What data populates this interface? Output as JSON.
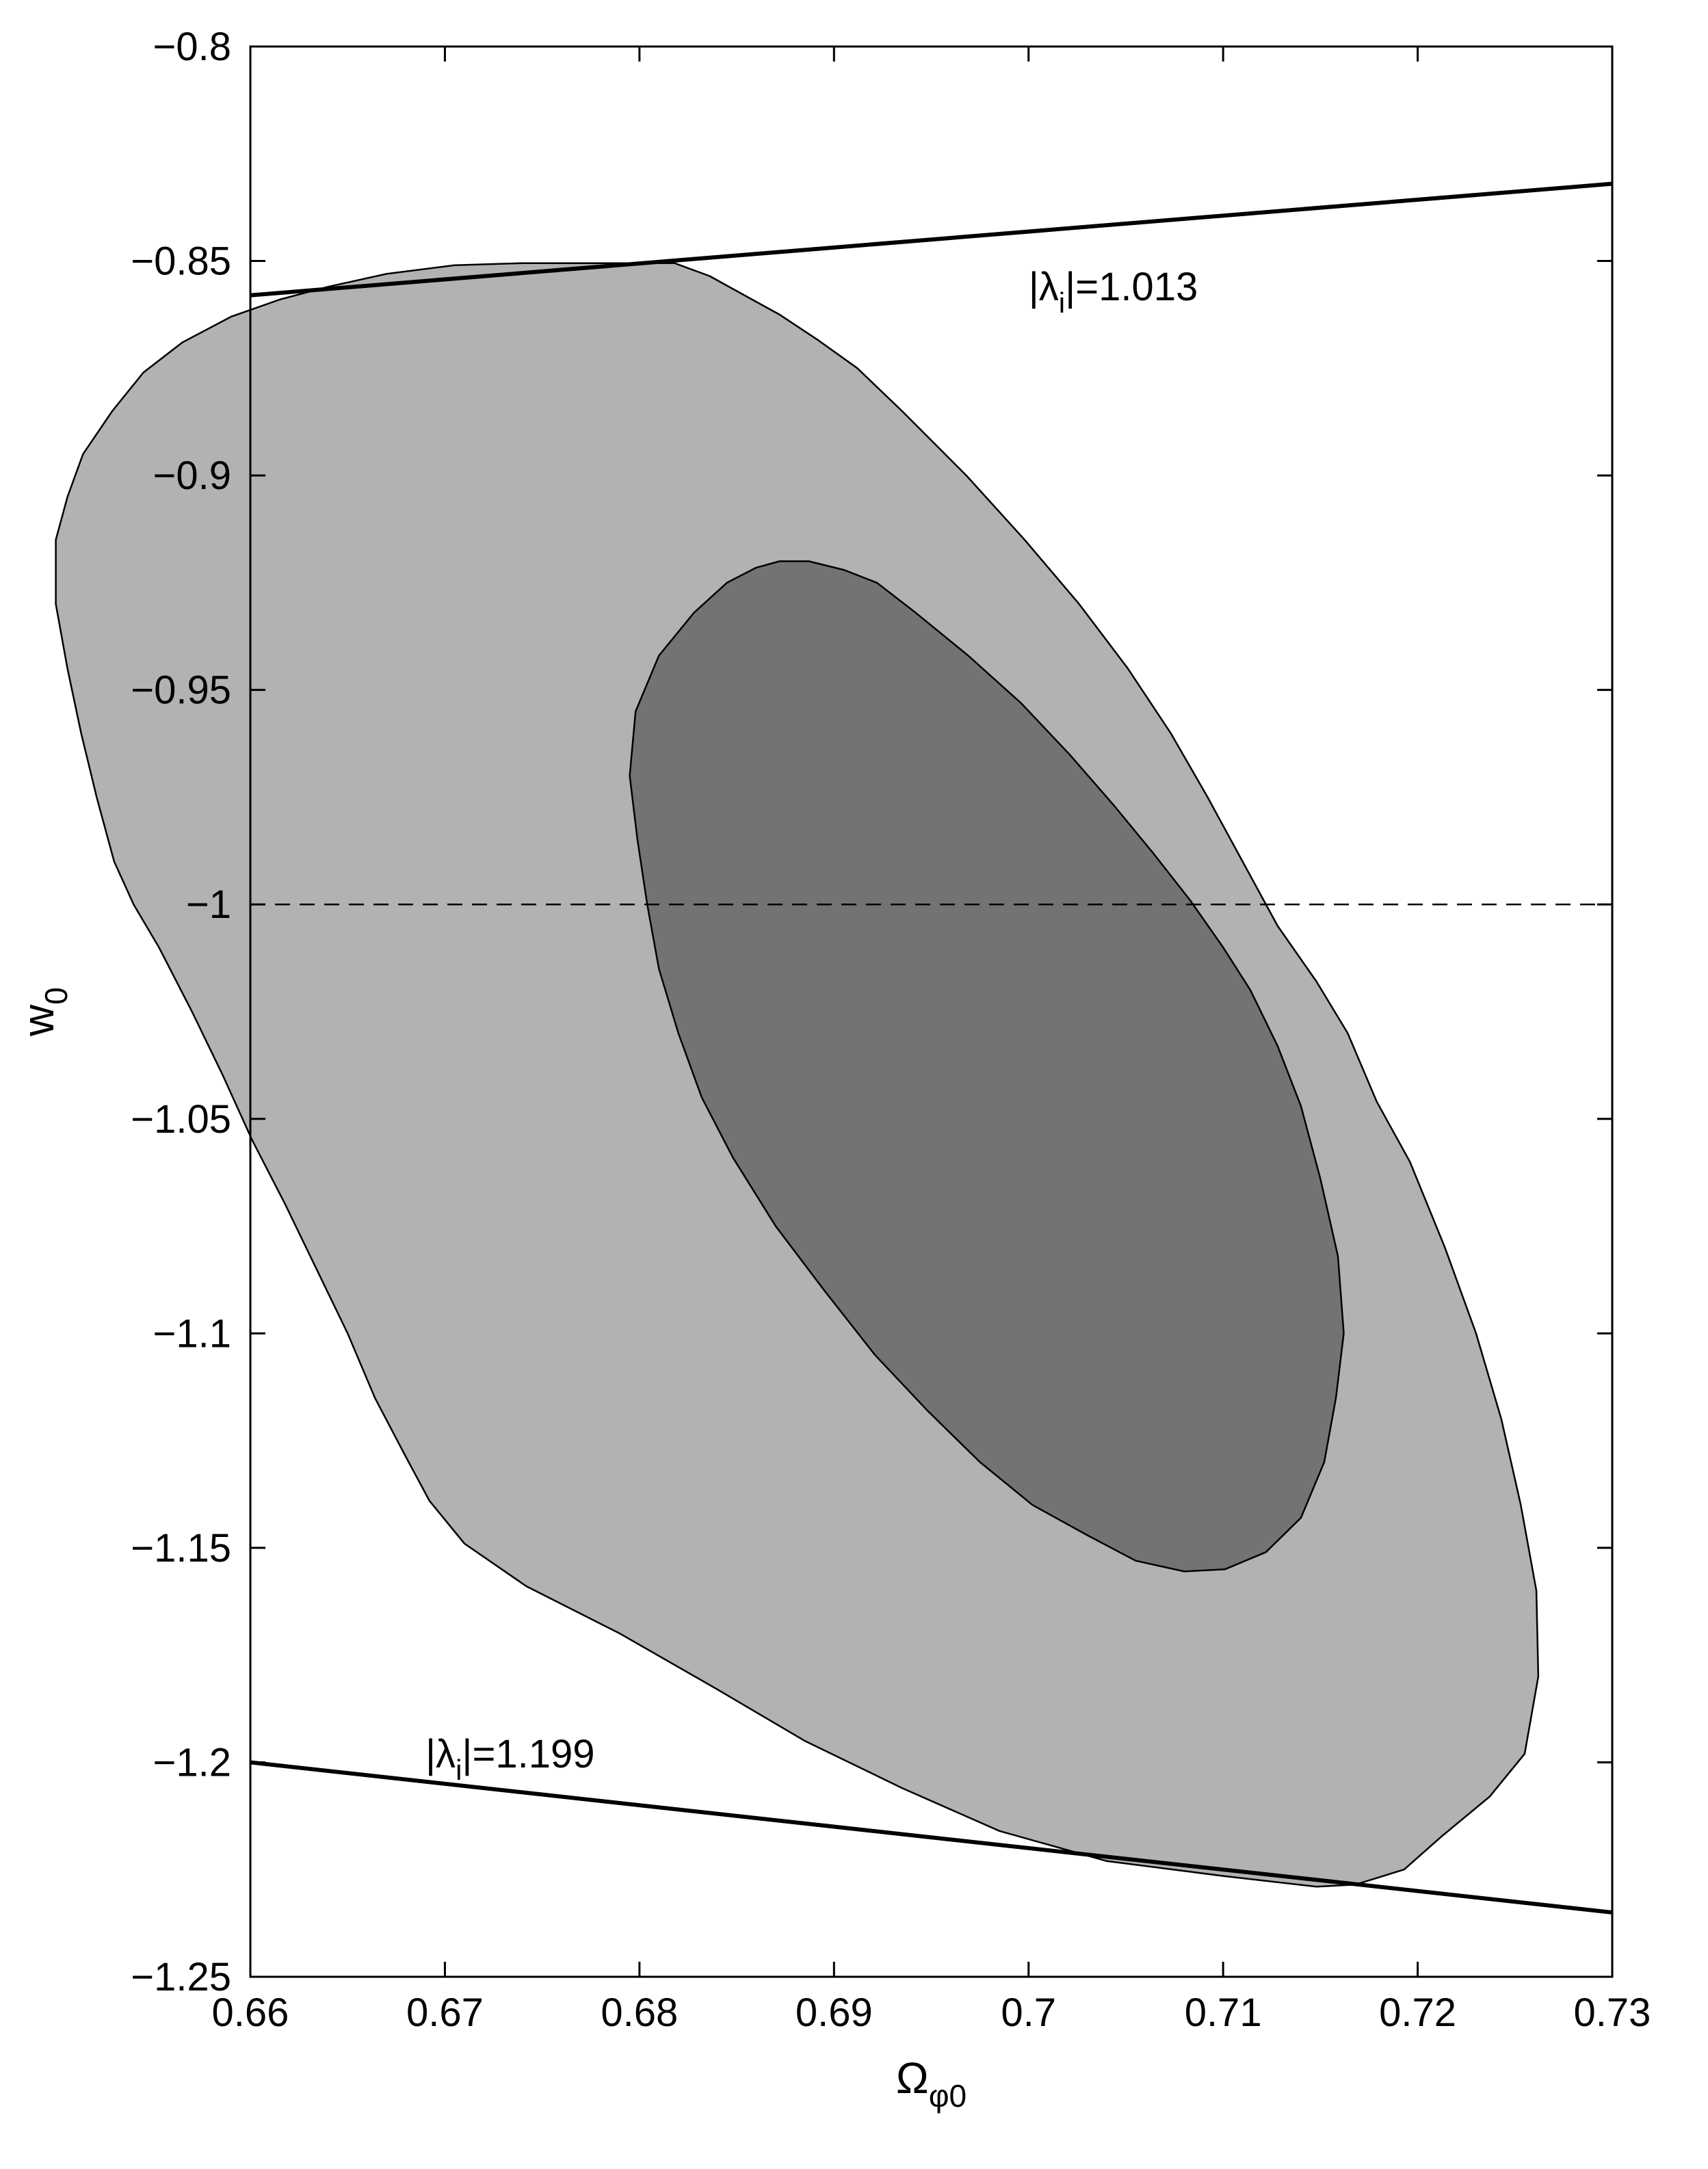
{
  "chart_data": {
    "type": "contour",
    "xlabel": {
      "base": "Ω",
      "sub": "φ0"
    },
    "ylabel": {
      "base": "w",
      "sub": "0"
    },
    "xlim": [
      0.66,
      0.73
    ],
    "ylim": [
      -1.25,
      -0.8
    ],
    "xticks": [
      0.66,
      0.67,
      0.68,
      0.69,
      0.7,
      0.71,
      0.72,
      0.73
    ],
    "xtick_labels": [
      "0.66",
      "0.67",
      "0.68",
      "0.69",
      "0.7",
      "0.71",
      "0.72",
      "0.73"
    ],
    "yticks": [
      -0.8,
      -0.85,
      -0.9,
      -0.95,
      -1.0,
      -1.05,
      -1.1,
      -1.15,
      -1.2,
      -1.25
    ],
    "ytick_labels": [
      "−0.8",
      "−0.85",
      "−0.9",
      "−0.95",
      "−1",
      "−1.05",
      "−1.1",
      "−1.15",
      "−1.2",
      "−1.25"
    ],
    "grid": false,
    "reference_line": {
      "y": -1.0,
      "style": "dashed"
    },
    "bound_lines": [
      {
        "label_prefix": "|λ",
        "label_sub": "i",
        "label_suffix": "|=1.013",
        "x": [
          0.66,
          0.73
        ],
        "y": [
          -0.858,
          -0.832
        ],
        "label_at": [
          0.7,
          -0.856
        ]
      },
      {
        "label_prefix": "|λ",
        "label_sub": "i",
        "label_suffix": "|=1.199",
        "x": [
          0.66,
          0.73
        ],
        "y": [
          -1.2,
          -1.235
        ],
        "label_at": [
          0.669,
          -1.198
        ]
      }
    ],
    "contours": [
      {
        "level": "outer",
        "fill": "#b2b2b2",
        "points": [
          [
            0.6803,
            -0.8505
          ],
          [
            0.6818,
            -0.8505
          ],
          [
            0.6836,
            -0.8535
          ],
          [
            0.6856,
            -0.8585
          ],
          [
            0.6872,
            -0.8625
          ],
          [
            0.6892,
            -0.8685
          ],
          [
            0.6912,
            -0.875
          ],
          [
            0.6935,
            -0.885
          ],
          [
            0.6968,
            -0.9
          ],
          [
            0.6998,
            -0.915
          ],
          [
            0.7026,
            -0.93
          ],
          [
            0.7051,
            -0.945
          ],
          [
            0.7073,
            -0.96
          ],
          [
            0.7092,
            -0.975
          ],
          [
            0.711,
            -0.99
          ],
          [
            0.7128,
            -1.005
          ],
          [
            0.7148,
            -1.018
          ],
          [
            0.7164,
            -1.03
          ],
          [
            0.7179,
            -1.046
          ],
          [
            0.7196,
            -1.06
          ],
          [
            0.7214,
            -1.08
          ],
          [
            0.723,
            -1.1
          ],
          [
            0.7243,
            -1.12
          ],
          [
            0.7253,
            -1.14
          ],
          [
            0.7261,
            -1.16
          ],
          [
            0.7262,
            -1.18
          ],
          [
            0.7255,
            -1.198
          ],
          [
            0.7237,
            -1.208
          ],
          [
            0.7213,
            -1.217
          ],
          [
            0.7193,
            -1.225
          ],
          [
            0.7168,
            -1.2285
          ],
          [
            0.7148,
            -1.229
          ],
          [
            0.71,
            -1.2265
          ],
          [
            0.704,
            -1.223
          ],
          [
            0.6985,
            -1.216
          ],
          [
            0.6935,
            -1.206
          ],
          [
            0.6885,
            -1.195
          ],
          [
            0.684,
            -1.183
          ],
          [
            0.679,
            -1.17
          ],
          [
            0.6742,
            -1.159
          ],
          [
            0.671,
            -1.149
          ],
          [
            0.6692,
            -1.139
          ],
          [
            0.6679,
            -1.128
          ],
          [
            0.6664,
            -1.115
          ],
          [
            0.665,
            -1.1
          ],
          [
            0.6634,
            -1.085
          ],
          [
            0.6618,
            -1.07
          ],
          [
            0.6601,
            -1.055
          ],
          [
            0.6586,
            -1.04
          ],
          [
            0.657,
            -1.025
          ],
          [
            0.6553,
            -1.01
          ],
          [
            0.654,
            -1.0
          ],
          [
            0.653,
            -0.99
          ],
          [
            0.6521,
            -0.975
          ],
          [
            0.6513,
            -0.96
          ],
          [
            0.6506,
            -0.945
          ],
          [
            0.65,
            -0.93
          ],
          [
            0.65,
            -0.915
          ],
          [
            0.6506,
            -0.905
          ],
          [
            0.6514,
            -0.895
          ],
          [
            0.6529,
            -0.885
          ],
          [
            0.6545,
            -0.876
          ],
          [
            0.6565,
            -0.869
          ],
          [
            0.659,
            -0.863
          ],
          [
            0.6615,
            -0.859
          ],
          [
            0.664,
            -0.856
          ],
          [
            0.667,
            -0.853
          ],
          [
            0.6705,
            -0.851
          ],
          [
            0.674,
            -0.8505
          ],
          [
            0.6775,
            -0.8505
          ]
        ]
      },
      {
        "level": "inner",
        "fill": "#737373",
        "points": [
          [
            0.6872,
            -0.92
          ],
          [
            0.6887,
            -0.92
          ],
          [
            0.6905,
            -0.922
          ],
          [
            0.6922,
            -0.925
          ],
          [
            0.6942,
            -0.932
          ],
          [
            0.6969,
            -0.942
          ],
          [
            0.6996,
            -0.953
          ],
          [
            0.7021,
            -0.965
          ],
          [
            0.7044,
            -0.977
          ],
          [
            0.7064,
            -0.988
          ],
          [
            0.7083,
            -0.999
          ],
          [
            0.71,
            -1.01
          ],
          [
            0.7114,
            -1.02
          ],
          [
            0.7128,
            -1.033
          ],
          [
            0.714,
            -1.047
          ],
          [
            0.715,
            -1.064
          ],
          [
            0.7159,
            -1.082
          ],
          [
            0.7162,
            -1.1
          ],
          [
            0.7158,
            -1.115
          ],
          [
            0.7152,
            -1.13
          ],
          [
            0.714,
            -1.143
          ],
          [
            0.7122,
            -1.151
          ],
          [
            0.7101,
            -1.155
          ],
          [
            0.708,
            -1.1555
          ],
          [
            0.7055,
            -1.153
          ],
          [
            0.703,
            -1.147
          ],
          [
            0.7002,
            -1.14
          ],
          [
            0.6975,
            -1.13
          ],
          [
            0.6948,
            -1.118
          ],
          [
            0.6921,
            -1.105
          ],
          [
            0.6895,
            -1.09
          ],
          [
            0.687,
            -1.075
          ],
          [
            0.6848,
            -1.059
          ],
          [
            0.6832,
            -1.045
          ],
          [
            0.682,
            -1.03
          ],
          [
            0.681,
            -1.015
          ],
          [
            0.6804,
            -1.0
          ],
          [
            0.6799,
            -0.985
          ],
          [
            0.6795,
            -0.97
          ],
          [
            0.6798,
            -0.955
          ],
          [
            0.681,
            -0.942
          ],
          [
            0.6828,
            -0.932
          ],
          [
            0.6845,
            -0.925
          ],
          [
            0.686,
            -0.9215
          ]
        ]
      }
    ]
  }
}
